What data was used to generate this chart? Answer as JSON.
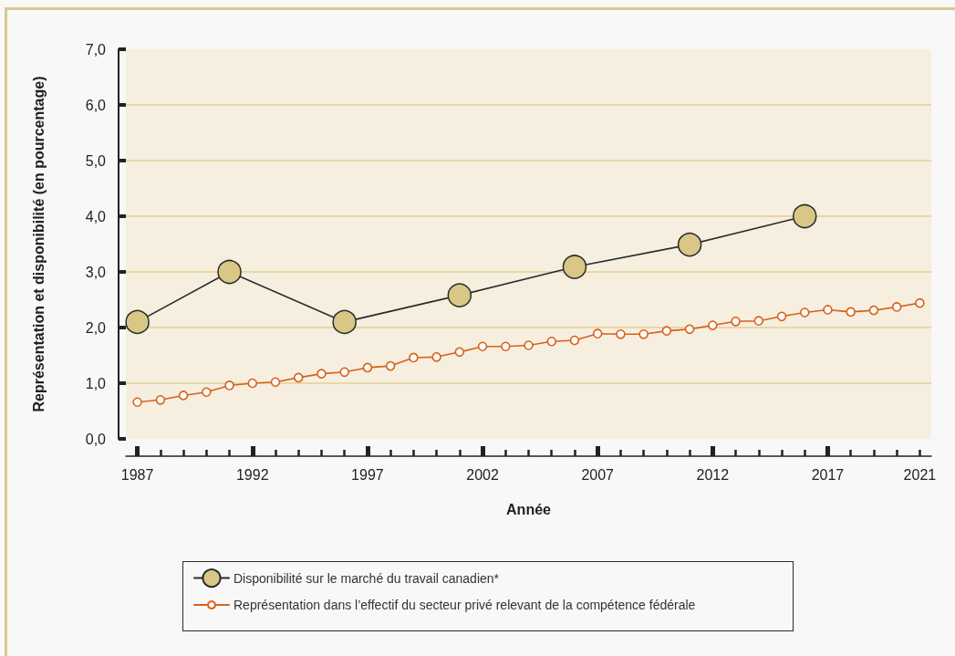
{
  "chart_data": {
    "type": "line",
    "xlabel": "Année",
    "ylabel": "Représentation et disponibilité (en pourcentage)",
    "xlim": [
      1986.5,
      2021.5
    ],
    "xticks": [
      1987,
      {
        "value": 1988,
        "label": null
      },
      {
        "value": 1989,
        "label": null
      },
      {
        "value": 1990,
        "label": null
      },
      {
        "value": 1991,
        "label": null
      },
      1992,
      {
        "value": 1993,
        "label": null
      },
      {
        "value": 1994,
        "label": null
      },
      {
        "value": 1995,
        "label": null
      },
      {
        "value": 1996,
        "label": null
      },
      1997,
      {
        "value": 1998,
        "label": null
      },
      {
        "value": 1999,
        "label": null
      },
      {
        "value": 2000,
        "label": null
      },
      {
        "value": 2001,
        "label": null
      },
      2002,
      {
        "value": 2003,
        "label": null
      },
      {
        "value": 2004,
        "label": null
      },
      {
        "value": 2005,
        "label": null
      },
      {
        "value": 2006,
        "label": null
      },
      2007,
      {
        "value": 2008,
        "label": null
      },
      {
        "value": 2009,
        "label": null
      },
      {
        "value": 2010,
        "label": null
      },
      {
        "value": 2011,
        "label": null
      },
      2012,
      {
        "value": 2013,
        "label": null
      },
      {
        "value": 2014,
        "label": null
      },
      {
        "value": 2015,
        "label": null
      },
      {
        "value": 2016,
        "label": null
      },
      2017,
      {
        "value": 2018,
        "label": null
      },
      {
        "value": 2019,
        "label": null
      },
      {
        "value": 2020,
        "label": null
      },
      2021
    ],
    "ylim": [
      0,
      7
    ],
    "yticks": [
      {
        "value": 0,
        "label": "0,0"
      },
      {
        "value": 1,
        "label": "1,0"
      },
      {
        "value": 2,
        "label": "2,0"
      },
      {
        "value": 3,
        "label": "3,0"
      },
      {
        "value": 4,
        "label": "4,0"
      },
      {
        "value": 5,
        "label": "5,0"
      },
      {
        "value": 6,
        "label": "6,0"
      },
      {
        "value": 7,
        "label": "7,0"
      }
    ],
    "grid": "y",
    "legend": "bottom",
    "marker": "circle",
    "line_style": "solid",
    "series": [
      {
        "name": "Disponibilité sur le marché du travail canadien*",
        "color": "#d8c787",
        "x": [
          1987,
          1991,
          1996,
          2001,
          2006,
          2011,
          2016
        ],
        "values": [
          2.1,
          3.0,
          2.1,
          2.58,
          3.09,
          3.49,
          4.0
        ]
      },
      {
        "name": "Représentation dans l’effectif du secteur privé relevant de la compétence fédérale",
        "color": "#d9601a",
        "x": [
          1987,
          1988,
          1989,
          1990,
          1991,
          1992,
          1993,
          1994,
          1995,
          1996,
          1997,
          1998,
          1999,
          2000,
          2001,
          2002,
          2003,
          2004,
          2005,
          2006,
          2007,
          2008,
          2009,
          2010,
          2011,
          2012,
          2013,
          2014,
          2015,
          2016,
          2017,
          2018,
          2019,
          2020,
          2021
        ],
        "values": [
          0.66,
          0.7,
          0.78,
          0.84,
          0.96,
          1.0,
          1.02,
          1.1,
          1.17,
          1.2,
          1.28,
          1.31,
          1.46,
          1.47,
          1.56,
          1.66,
          1.66,
          1.68,
          1.75,
          1.77,
          1.89,
          1.88,
          1.88,
          1.94,
          1.97,
          2.04,
          2.11,
          2.12,
          2.2,
          2.27,
          2.32,
          2.28,
          2.31,
          2.37,
          2.44
        ]
      }
    ]
  }
}
